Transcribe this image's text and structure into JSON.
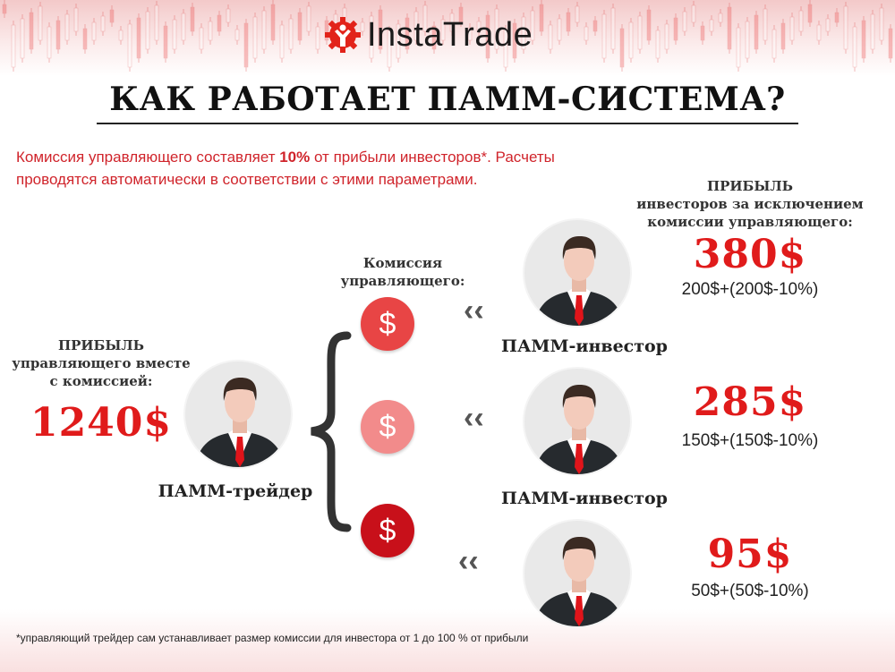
{
  "brand": {
    "name": "InstaTrade",
    "accent": "#e2231a"
  },
  "title": "КАК РАБОТАЕТ ПАММ-СИСТЕМА?",
  "intro": {
    "pre": "Комиссия управляющего составляет ",
    "highlight": "10%",
    "post": " от прибыли инвесторов*. Расчеты",
    "line2": "проводятся автоматически в соответствии с этими параметрами."
  },
  "trader": {
    "heading": "ПРИБЫЛЬ",
    "line1": "управляющего вместе",
    "line2": "с комиссией:",
    "amount": "1240$",
    "role": "ПАММ-трейдер"
  },
  "commission": {
    "line1": "Комиссия",
    "line2": "управляющего:",
    "symbol": "$",
    "colors": [
      "#e84545",
      "#f28b8b",
      "#c8101a"
    ]
  },
  "investors_header": {
    "heading": "ПРИБЫЛЬ",
    "line1": "инвесторов за исключением",
    "line2": "комиссии управляющего:"
  },
  "investors": [
    {
      "role": "ПАММ-инвестор",
      "amount": "380$",
      "formula": "200$+(200$-10%)"
    },
    {
      "role": "ПАММ-инвестор",
      "amount": "285$",
      "formula": "150$+(150$-10%)"
    },
    {
      "amount": "95$",
      "formula": "50$+(50$-10%)"
    }
  ],
  "footnote": "*управляющий трейдер сам устанавливает размер комиссии для инвестора от 1 до 100 % от прибыли"
}
